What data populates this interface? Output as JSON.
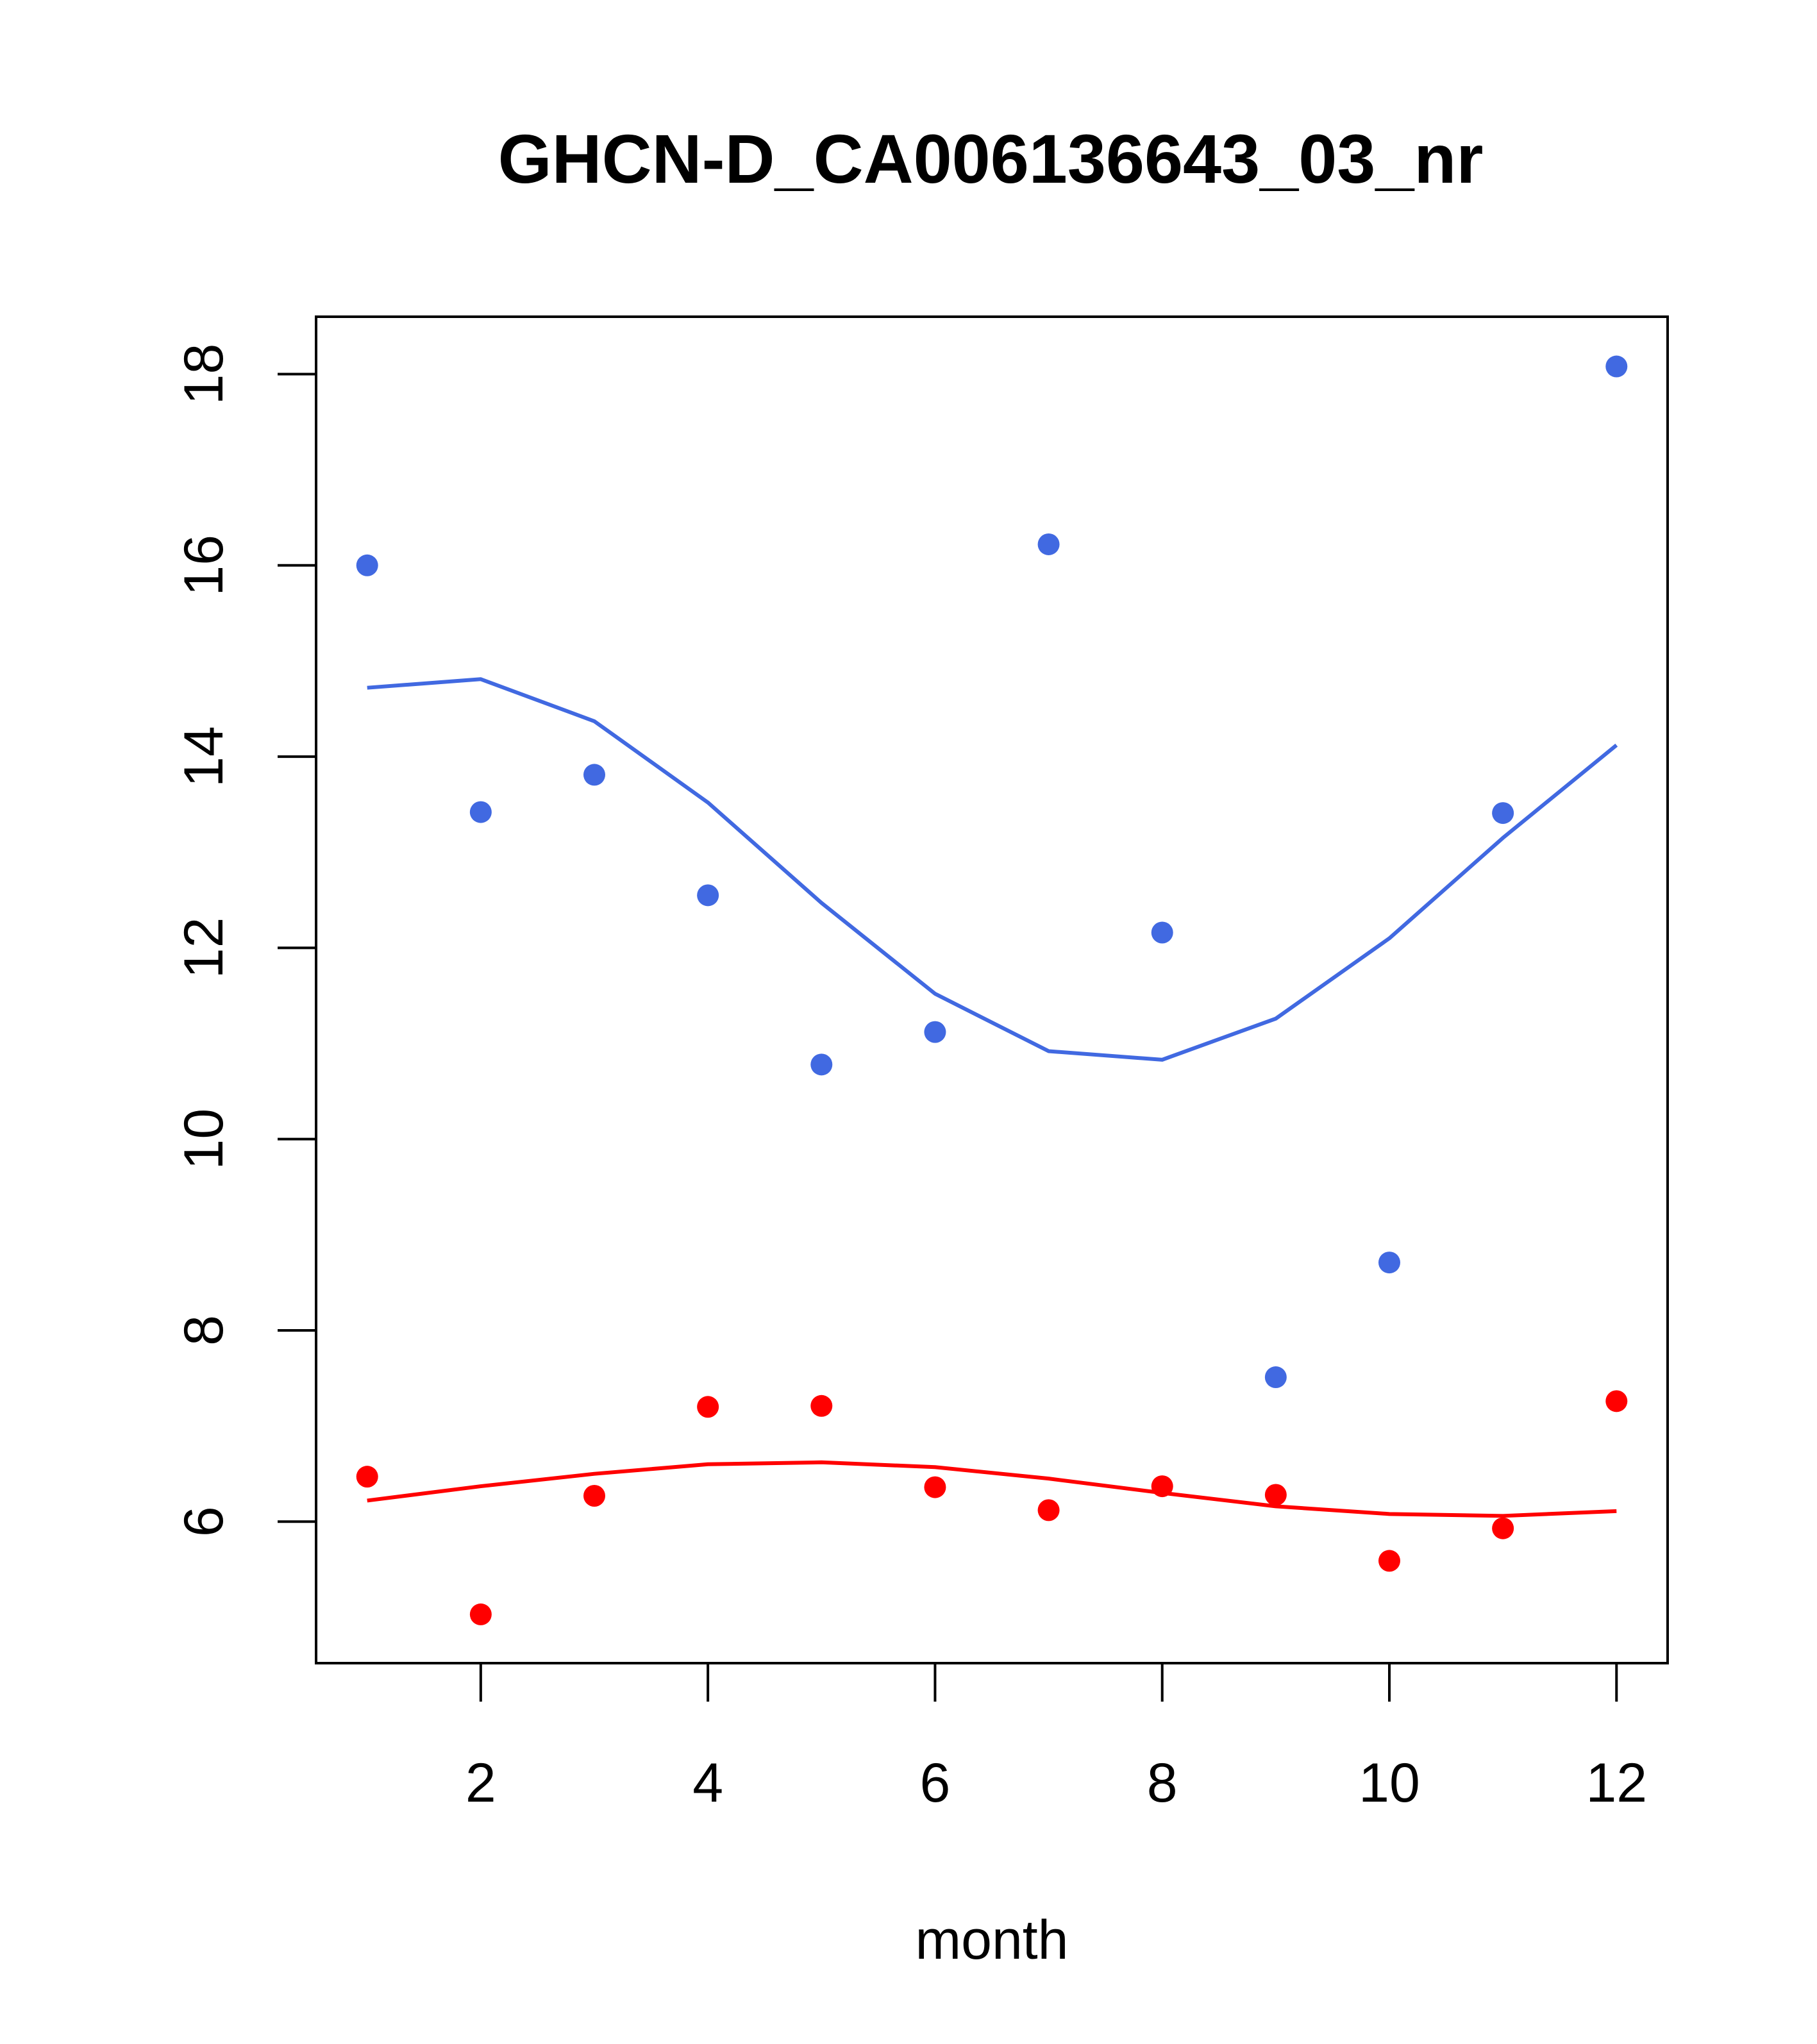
{
  "chart_data": {
    "type": "scatter",
    "title": "GHCN-D_CA006136643_03_nr",
    "xlabel": "month",
    "ylabel": "",
    "xlim": [
      0.55,
      12.45
    ],
    "ylim": [
      4.52,
      18.6
    ],
    "xticks": [
      2,
      4,
      6,
      8,
      10,
      12
    ],
    "yticks": [
      6,
      8,
      10,
      12,
      14,
      16,
      18
    ],
    "grid": false,
    "series": [
      {
        "name": "blue points",
        "kind": "points",
        "color": "#4169E1",
        "x": [
          1,
          2,
          3,
          4,
          5,
          6,
          7,
          8,
          9,
          10,
          11,
          12
        ],
        "y": [
          16.0,
          13.42,
          13.81,
          12.55,
          10.78,
          11.12,
          16.22,
          12.16,
          7.51,
          8.71,
          13.41,
          18.08
        ]
      },
      {
        "name": "blue smooth",
        "kind": "line",
        "color": "#4169E1",
        "x": [
          1,
          2,
          3,
          4,
          5,
          6,
          7,
          8,
          9,
          10,
          11,
          12
        ],
        "y": [
          14.72,
          14.81,
          14.37,
          13.52,
          12.47,
          11.52,
          10.92,
          10.83,
          11.26,
          12.1,
          13.15,
          14.12
        ]
      },
      {
        "name": "red points",
        "kind": "points",
        "color": "#FF0000",
        "x": [
          1,
          2,
          3,
          4,
          5,
          6,
          7,
          8,
          9,
          10,
          11,
          12
        ],
        "y": [
          6.47,
          5.03,
          6.27,
          7.2,
          7.21,
          6.36,
          6.12,
          6.37,
          6.28,
          5.59,
          5.93,
          7.26
        ]
      },
      {
        "name": "red smooth",
        "kind": "line",
        "color": "#FF0000",
        "x": [
          1,
          2,
          3,
          4,
          5,
          6,
          7,
          8,
          9,
          10,
          11,
          12
        ],
        "y": [
          6.22,
          6.37,
          6.5,
          6.6,
          6.62,
          6.57,
          6.45,
          6.3,
          6.16,
          6.08,
          6.06,
          6.11
        ]
      }
    ]
  }
}
